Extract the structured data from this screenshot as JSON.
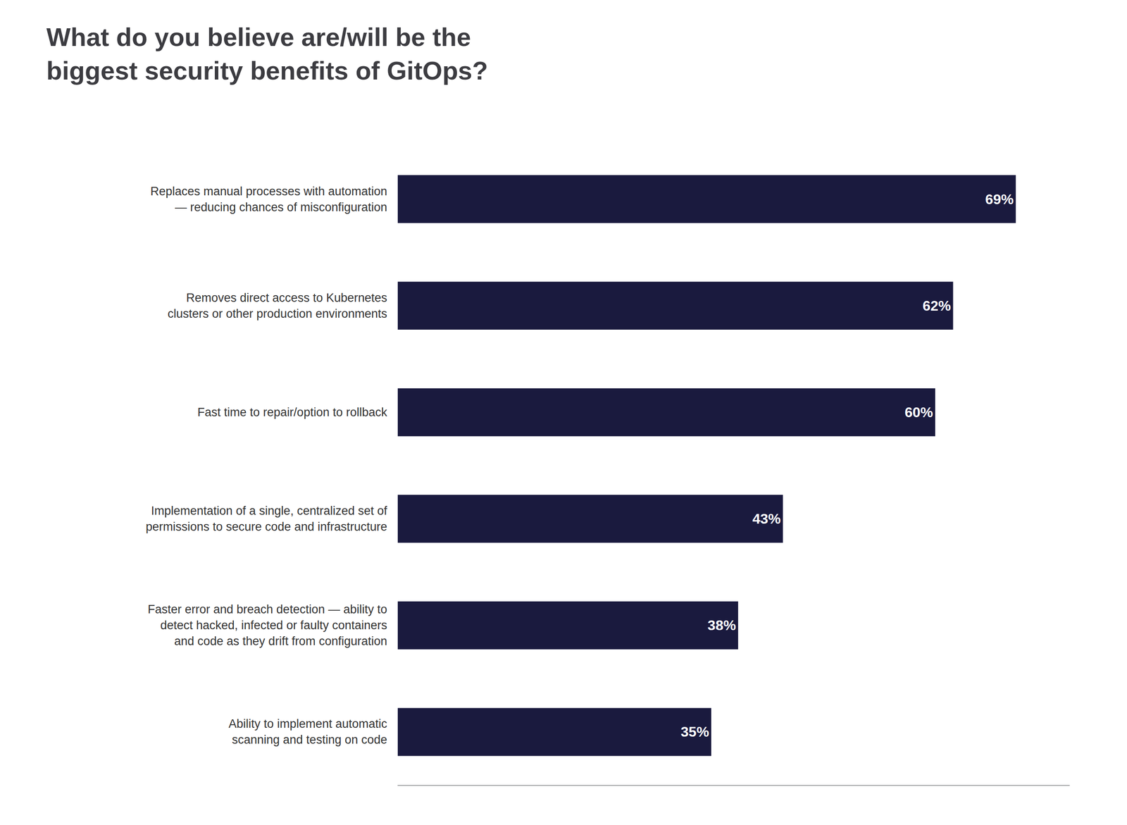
{
  "chart_data": {
    "type": "bar",
    "orientation": "horizontal",
    "title": "What do you believe are/will be the\nbiggest security benefits of GitOps?",
    "categories": [
      "Replaces manual processes with automation\n— reducing chances of misconfiguration",
      "Removes direct access to Kubernetes\nclusters or other production environments",
      "Fast time to repair/option to rollback",
      "Implementation of a single, centralized set of\npermissions to secure code and infrastructure",
      "Faster error and breach detection — ability to\ndetect hacked, infected or faulty containers\nand code as they drift from configuration",
      "Ability to implement automatic\nscanning and testing on code"
    ],
    "values": [
      69,
      62,
      60,
      43,
      38,
      35
    ],
    "value_labels": [
      "69%",
      "62%",
      "60%",
      "43%",
      "38%",
      "35%"
    ],
    "data_labels": true,
    "color": "#1a1a3e",
    "xlim": [
      0,
      75
    ],
    "tick_labels": "y",
    "grid": false
  }
}
